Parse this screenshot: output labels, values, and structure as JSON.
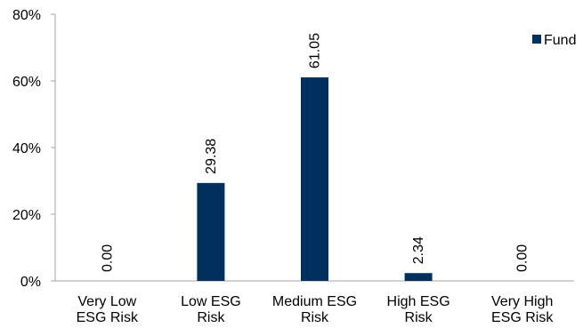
{
  "chart_data": {
    "type": "bar",
    "categories": [
      [
        "Very Low",
        "ESG Risk"
      ],
      [
        "Low ESG",
        "Risk"
      ],
      [
        "Medium ESG",
        "Risk"
      ],
      [
        "High ESG",
        "Risk"
      ],
      [
        "Very High",
        "ESG Risk"
      ]
    ],
    "series": [
      {
        "name": "Fund",
        "values": [
          0.0,
          29.38,
          61.05,
          2.34,
          0.0
        ],
        "data_labels": [
          "0.00",
          "29.38",
          "61.05",
          "2.34",
          "0.00"
        ],
        "color": "#00305e"
      }
    ],
    "y_ticks": [
      "0%",
      "20%",
      "40%",
      "60%",
      "80%"
    ],
    "ylim": [
      0,
      80
    ],
    "title": "",
    "xlabel": "",
    "ylabel": "",
    "grid": false,
    "legend": {
      "position": "top-right",
      "label": "Fund"
    }
  }
}
